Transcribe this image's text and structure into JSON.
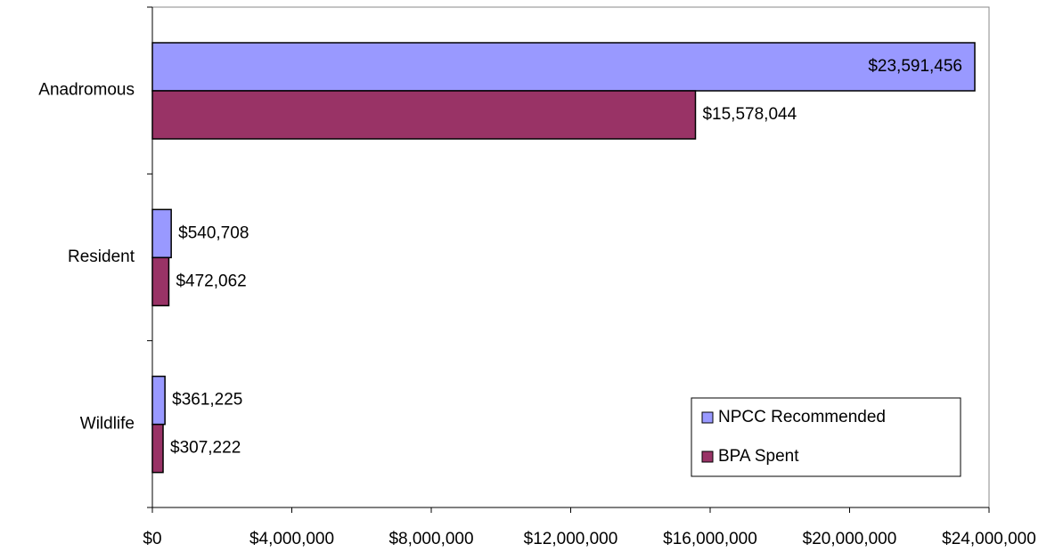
{
  "chart_data": {
    "type": "hbar",
    "categories": [
      "Anadromous",
      "Resident",
      "Wildlife"
    ],
    "series": [
      {
        "name": "NPCC Recommended",
        "color": "#9999ff",
        "values": [
          23591456,
          540708,
          361225
        ],
        "value_labels": [
          "$23,591,456",
          "$540,708",
          "$361,225"
        ]
      },
      {
        "name": "BPA Spent",
        "color": "#993366",
        "values": [
          15578044,
          472062,
          307222
        ],
        "value_labels": [
          "$15,578,044",
          "$472,062",
          "$307,222"
        ]
      }
    ],
    "xlim": [
      0,
      24000000
    ],
    "xticks": [
      {
        "value": 0,
        "label": "$0"
      },
      {
        "value": 4000000,
        "label": "$4,000,000"
      },
      {
        "value": 8000000,
        "label": "$8,000,000"
      },
      {
        "value": 12000000,
        "label": "$12,000,000"
      },
      {
        "value": 16000000,
        "label": "$16,000,000"
      },
      {
        "value": 20000000,
        "label": "$20,000,000"
      },
      {
        "value": 24000000,
        "label": "$24,000,000"
      }
    ],
    "legend": "bottom-right"
  }
}
